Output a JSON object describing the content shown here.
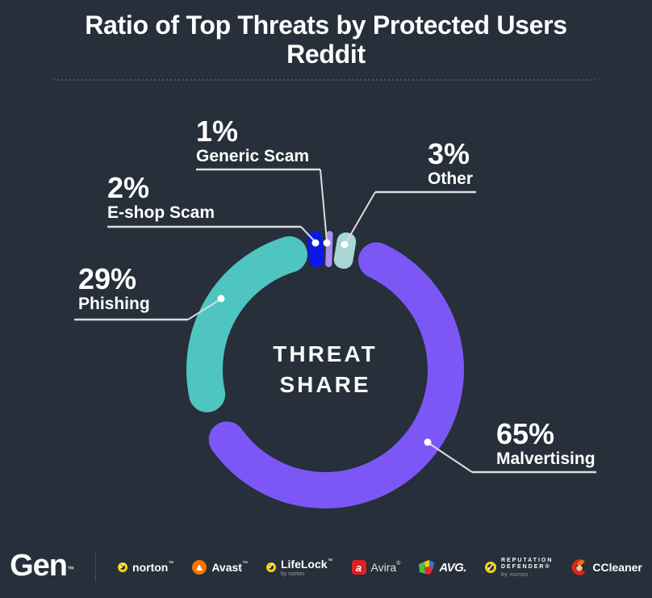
{
  "title": {
    "line1": "Ratio of Top Threats by Protected Users",
    "line2": "Reddit"
  },
  "center_label": {
    "line1": "THREAT",
    "line2": "SHARE"
  },
  "chart_data": {
    "type": "donut",
    "title": "Ratio of Top Threats by Protected Users - Reddit",
    "center_text": "THREAT SHARE",
    "unit": "percent",
    "legend_position": "callouts",
    "segments": [
      {
        "label": "E-shop Scam",
        "value": 2,
        "pct_label": "2%",
        "color": "#0D18E6",
        "shape": "capsule",
        "arc": [
          -8.2,
          -0.9
        ]
      },
      {
        "label": "Generic Scam",
        "value": 1,
        "pct_label": "1%",
        "color": "#A98FF3",
        "shape": "capsule",
        "arc": [
          0.3,
          3.4
        ]
      },
      {
        "label": "Other",
        "value": 3,
        "pct_label": "3%",
        "color": "#A9D7D5",
        "shape": "capsule",
        "arc": [
          4.9,
          14.0
        ]
      },
      {
        "label": "Malvertising",
        "value": 65,
        "pct_label": "65%",
        "color": "#7C57F5",
        "shape": "arc",
        "arc": [
          16.5,
          243.2
        ]
      },
      {
        "label": "Phishing",
        "value": 29,
        "pct_label": "29%",
        "color": "#4EC5C1",
        "shape": "arc",
        "arc": [
          249.6,
          351.3
        ]
      }
    ]
  },
  "colors": {
    "background": "#262F3A",
    "text": "#FFFFFF",
    "leader_line": "#DADDE0",
    "divider_dots": "#4C565F",
    "brand_yellow": "#FFD400",
    "avast_orange": "#FF7300",
    "avira_red": "#E02027",
    "ccleaner_red": "#E1251B"
  },
  "footer": {
    "gen_label": "Gen",
    "gen_tm": "™",
    "norton": {
      "label": "norton",
      "tm": "™"
    },
    "avast": {
      "label": "Avast",
      "tm": "™"
    },
    "lifelock": {
      "label": "LifeLock",
      "tm": "™",
      "sub": "by norton"
    },
    "avira": {
      "label": "Avira",
      "tm": "®",
      "icon_letter": "a"
    },
    "avg": {
      "label": "AVG."
    },
    "repdefender": {
      "line1": "REPUTATION",
      "line2": "DEFENDER®",
      "sub": "by norton"
    },
    "ccleaner": {
      "label": "CCleaner"
    }
  }
}
